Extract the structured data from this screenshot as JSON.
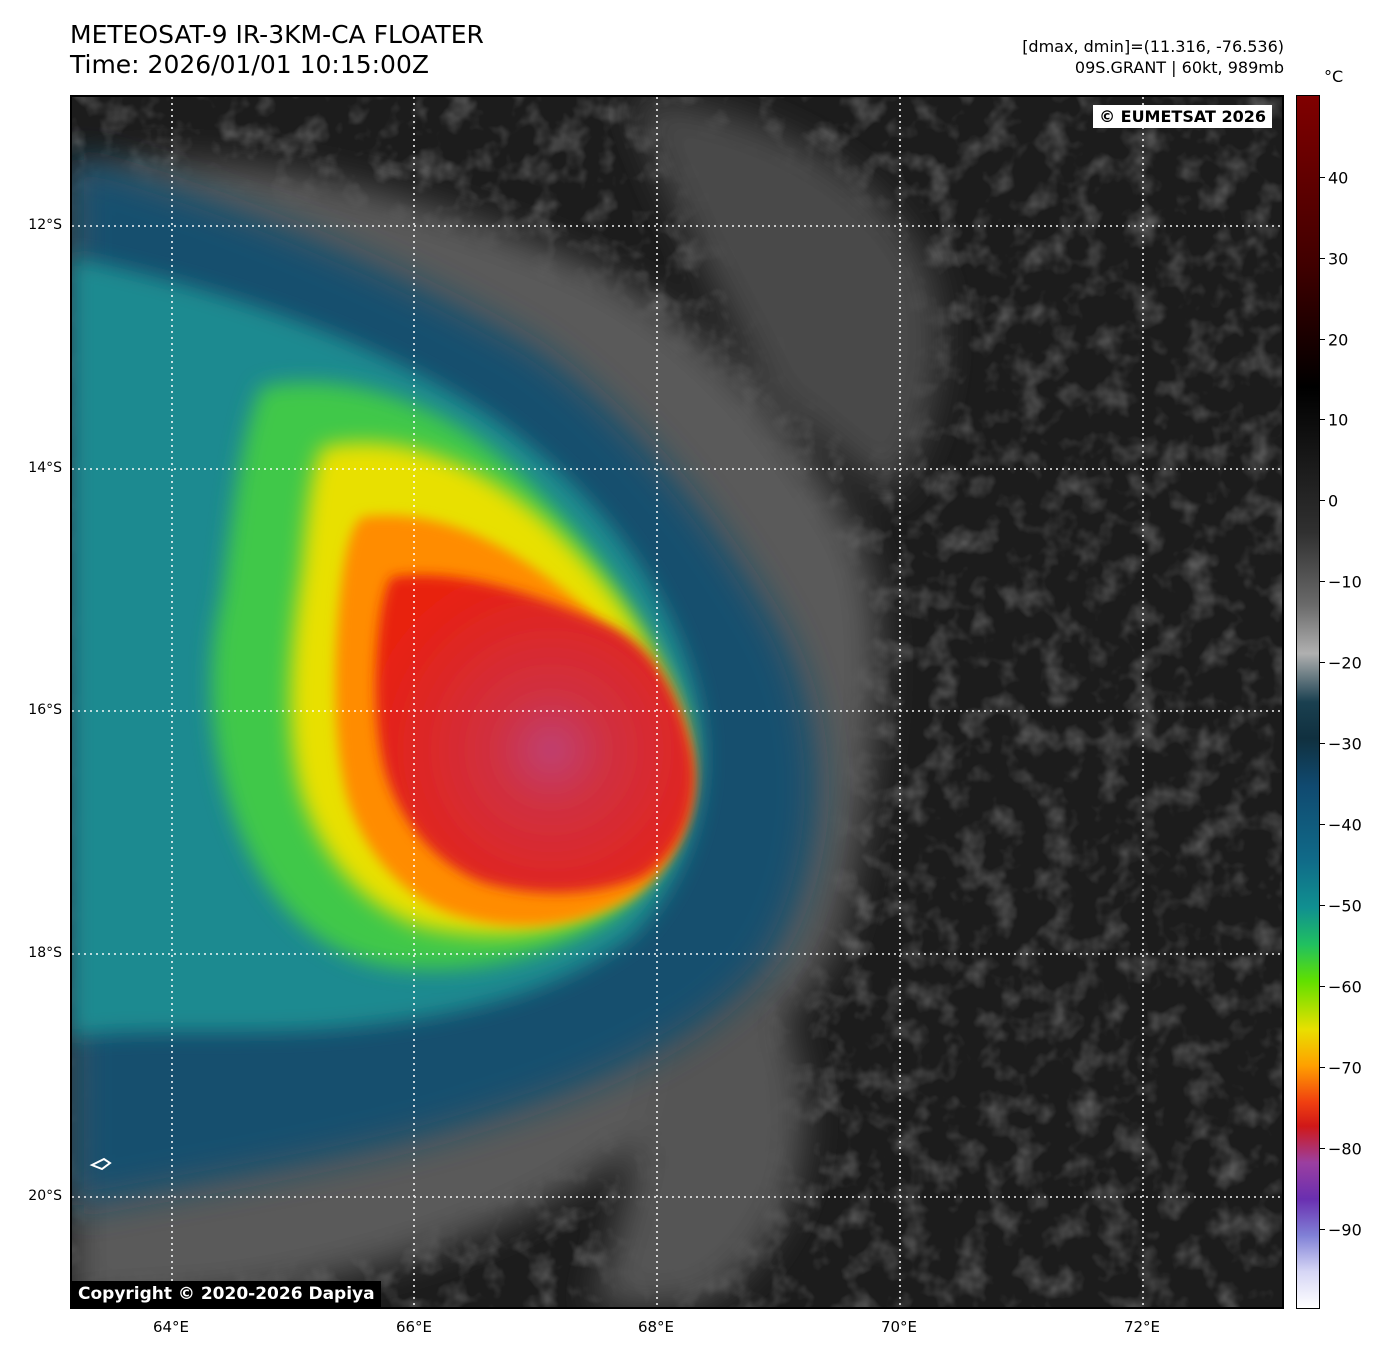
{
  "header": {
    "title_line1": "METEOSAT-9 IR-3KM-CA FLOATER",
    "title_line2": "Time: 2026/01/01 10:15:00Z",
    "meta_line1": "[dmax, dmin]=(11.316, -76.536)",
    "meta_line2": "09S.GRANT | 60kt, 989mb"
  },
  "map": {
    "copyright_top": "© EUMETSAT 2026",
    "copyright_bottom": "Copyright © 2020-2026 Dapiya",
    "lat_labels": [
      "12°S",
      "14°S",
      "16°S",
      "18°S",
      "20°S"
    ],
    "lon_labels": [
      "64°E",
      "66°E",
      "68°E",
      "70°E",
      "72°E"
    ],
    "extent": {
      "lon_min": 63.17,
      "lon_max": 73.17,
      "lat_min": -20.93,
      "lat_max": -10.93
    },
    "gridlines": true,
    "storm": {
      "name": "09S.GRANT",
      "center_lon": 67.5,
      "center_lat": -16.4
    }
  },
  "colorbar": {
    "unit": "°C",
    "ticks": [
      "40",
      "30",
      "20",
      "10",
      "0",
      "−10",
      "−20",
      "−30",
      "−40",
      "−50",
      "−60",
      "−70",
      "−80",
      "−90"
    ],
    "range": [
      -100,
      50
    ]
  },
  "colors": {
    "background_dark": "#1a1a1a",
    "cloud_gray": "#7a7a7a",
    "cold_blue": "#1a4d6e",
    "teal": "#1a8a8a",
    "green": "#5ad020",
    "yellow": "#e8e000",
    "orange": "#ff8c00",
    "red": "#e82010",
    "core_red": "#c83040"
  }
}
